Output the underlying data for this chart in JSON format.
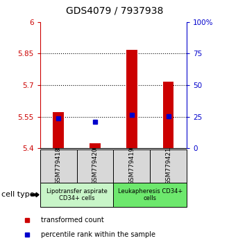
{
  "title": "GDS4079 / 7937938",
  "samples": [
    "GSM779418",
    "GSM779420",
    "GSM779419",
    "GSM779421"
  ],
  "red_values": [
    5.572,
    5.422,
    5.868,
    5.715
  ],
  "blue_values": [
    23.5,
    21.0,
    26.5,
    25.5
  ],
  "ylim_left": [
    5.4,
    6.0
  ],
  "ylim_right": [
    0,
    100
  ],
  "yticks_left": [
    5.4,
    5.55,
    5.7,
    5.85,
    6.0
  ],
  "yticks_right": [
    0,
    25,
    50,
    75,
    100
  ],
  "ytick_labels_left": [
    "5.4",
    "5.55",
    "5.7",
    "5.85",
    "6"
  ],
  "ytick_labels_right": [
    "0",
    "25",
    "50",
    "75",
    "100%"
  ],
  "hlines": [
    5.55,
    5.7,
    5.85
  ],
  "group_labels": [
    "Lipotransfer aspirate\nCD34+ cells",
    "Leukapheresis CD34+\ncells"
  ],
  "group_ranges": [
    [
      0,
      2
    ],
    [
      2,
      4
    ]
  ],
  "group_colors": [
    "#c8f5c8",
    "#6de86d"
  ],
  "bar_color": "#cc0000",
  "dot_color": "#0000cc",
  "bar_width": 0.3,
  "legend_red": "transformed count",
  "legend_blue": "percentile rank within the sample",
  "cell_type_label": "cell type",
  "sample_bg": "#d8d8d8",
  "title_fontsize": 10,
  "tick_fontsize": 7.5,
  "sample_fontsize": 6.5,
  "group_fontsize": 6.0,
  "legend_fontsize": 7.0
}
